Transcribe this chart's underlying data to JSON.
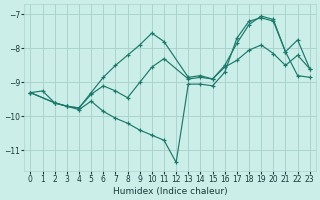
{
  "xlabel": "Humidex (Indice chaleur)",
  "bg_color": "#cceee8",
  "grid_color": "#aad4ce",
  "line_color": "#1a7a6a",
  "xlim": [
    -0.5,
    23.5
  ],
  "ylim": [
    -11.6,
    -6.7
  ],
  "yticks": [
    -11,
    -10,
    -9,
    -8,
    -7
  ],
  "xticks": [
    0,
    1,
    2,
    3,
    4,
    5,
    6,
    7,
    8,
    9,
    10,
    11,
    12,
    13,
    14,
    15,
    16,
    17,
    18,
    19,
    20,
    21,
    22,
    23
  ],
  "series": [
    {
      "x": [
        0,
        1,
        2,
        3,
        4,
        5,
        6,
        7,
        8,
        9,
        10,
        11,
        12,
        13,
        14,
        15,
        16,
        17,
        18,
        19,
        20,
        21,
        22,
        23
      ],
      "y": [
        -9.3,
        -9.25,
        -9.6,
        -9.7,
        -9.8,
        -9.55,
        -9.85,
        -10.05,
        -10.2,
        -10.4,
        -10.55,
        -10.7,
        -11.35,
        -9.05,
        -9.05,
        -9.1,
        -8.7,
        -7.7,
        -7.2,
        -7.1,
        -7.2,
        -8.1,
        -8.8,
        -8.85
      ]
    },
    {
      "x": [
        0,
        2,
        3,
        4,
        5,
        6,
        7,
        8,
        9,
        10,
        11,
        13,
        14,
        15,
        16,
        17,
        18,
        19,
        20,
        21,
        22,
        23
      ],
      "y": [
        -9.3,
        -9.6,
        -9.7,
        -9.75,
        -9.35,
        -9.1,
        -9.25,
        -9.45,
        -9.0,
        -8.55,
        -8.3,
        -8.9,
        -8.85,
        -8.9,
        -8.55,
        -8.35,
        -8.05,
        -7.9,
        -8.15,
        -8.5,
        -8.2,
        -8.6
      ]
    },
    {
      "x": [
        0,
        2,
        3,
        4,
        5,
        6,
        7,
        8,
        9,
        10,
        11,
        13,
        14,
        15,
        16,
        17,
        18,
        19,
        20,
        21,
        22,
        23
      ],
      "y": [
        -9.3,
        -9.6,
        -9.7,
        -9.75,
        -9.3,
        -8.85,
        -8.5,
        -8.2,
        -7.9,
        -7.55,
        -7.8,
        -8.85,
        -8.8,
        -8.9,
        -8.5,
        -7.85,
        -7.3,
        -7.05,
        -7.15,
        -8.1,
        -7.75,
        -8.6
      ]
    }
  ]
}
